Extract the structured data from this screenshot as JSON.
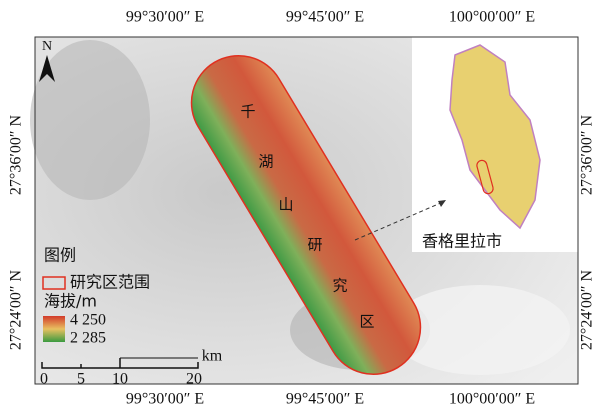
{
  "coordinates": {
    "top": [
      "99°30′00″ E",
      "99°45′00″ E",
      "100°00′00″ E"
    ],
    "bottom": [
      "99°30′00″ E",
      "99°45′00″ E",
      "100°00′00″ E"
    ],
    "left": [
      "27°36′00″ N",
      "27°24′00″ N"
    ],
    "right": [
      "27°36′00″ N",
      "27°24′00″ N"
    ]
  },
  "north": "N",
  "map_labels": [
    "千",
    "湖",
    "山",
    "研",
    "究",
    "区"
  ],
  "inset": {
    "label": "香格里拉市"
  },
  "legend": {
    "title": "图例",
    "boundary": "研究区范围",
    "elevation_title": "海拔/m",
    "high": "4 250",
    "low": "2 285"
  },
  "scale_bar": {
    "unit": "km",
    "ticks": [
      "0",
      "5",
      "10",
      "20"
    ]
  }
}
